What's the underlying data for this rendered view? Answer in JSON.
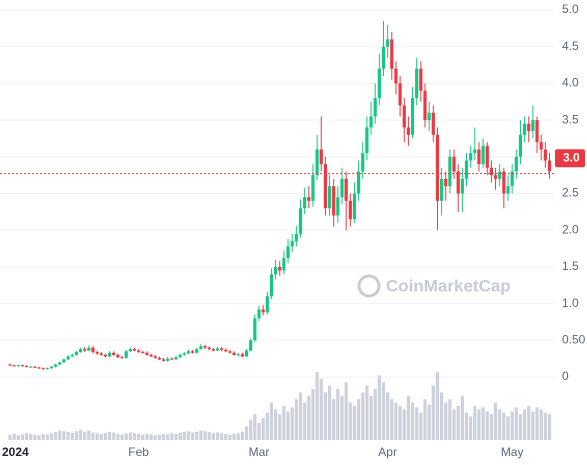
{
  "chart_data": {
    "type": "candlestick",
    "watermark": "CoinMarketCap",
    "up_color": "#16c784",
    "down_color": "#ea3943",
    "volume_color": "#cdd1dc",
    "grid": true,
    "ylim": [
      0,
      5
    ],
    "yticks": [
      0,
      {
        "value": 0.5,
        "label": "0.50"
      },
      {
        "value": 1,
        "label": "1.0"
      },
      1.5,
      {
        "value": 2,
        "label": "2.0"
      },
      2.5,
      {
        "value": 3,
        "label": "3.0"
      },
      3.5,
      {
        "value": 4,
        "label": "4.0"
      },
      4.5,
      {
        "value": 5,
        "label": "5.0"
      }
    ],
    "last_price": {
      "value": 2.98,
      "label": "3.0"
    },
    "price_line": 2.77,
    "categories": [
      "2024",
      null,
      null,
      null,
      null,
      null,
      null,
      null,
      null,
      null,
      null,
      null,
      null,
      null,
      null,
      null,
      null,
      null,
      null,
      null,
      null,
      null,
      null,
      null,
      null,
      null,
      null,
      null,
      null,
      null,
      null,
      "Feb",
      null,
      null,
      null,
      null,
      null,
      null,
      null,
      null,
      null,
      null,
      null,
      null,
      null,
      null,
      null,
      null,
      null,
      null,
      null,
      null,
      null,
      null,
      null,
      null,
      null,
      null,
      null,
      null,
      "Mar",
      null,
      null,
      null,
      null,
      null,
      null,
      null,
      null,
      null,
      null,
      null,
      null,
      null,
      null,
      null,
      null,
      null,
      null,
      null,
      null,
      null,
      null,
      null,
      null,
      null,
      null,
      null,
      null,
      null,
      null,
      "Apr",
      null,
      null,
      null,
      null,
      null,
      null,
      null,
      null,
      null,
      null,
      null,
      null,
      null,
      null,
      null,
      null,
      null,
      null,
      null,
      null,
      null,
      null,
      null,
      null,
      null,
      null,
      null,
      null,
      null,
      "May",
      null,
      null,
      null,
      null,
      null,
      null,
      null,
      null,
      null
    ],
    "open": [
      0.17,
      0.16,
      0.15,
      0.16,
      0.15,
      0.14,
      0.14,
      0.13,
      0.12,
      0.11,
      0.12,
      0.14,
      0.17,
      0.2,
      0.24,
      0.28,
      0.3,
      0.34,
      0.38,
      0.36,
      0.4,
      0.34,
      0.32,
      0.3,
      0.28,
      0.33,
      0.3,
      0.27,
      0.26,
      0.35,
      0.38,
      0.36,
      0.34,
      0.33,
      0.3,
      0.28,
      0.26,
      0.24,
      0.22,
      0.25,
      0.24,
      0.27,
      0.3,
      0.32,
      0.35,
      0.33,
      0.38,
      0.42,
      0.4,
      0.38,
      0.36,
      0.39,
      0.37,
      0.35,
      0.33,
      0.3,
      0.31,
      0.28,
      0.36,
      0.5,
      0.8,
      0.92,
      0.88,
      1.1,
      1.4,
      1.5,
      1.45,
      1.62,
      1.78,
      1.85,
      1.95,
      2.3,
      2.45,
      2.4,
      2.75,
      3.1,
      2.9,
      2.3,
      2.6,
      2.2,
      2.45,
      2.7,
      2.4,
      2.15,
      2.5,
      2.8,
      3.05,
      3.4,
      3.55,
      3.8,
      4.2,
      4.5,
      4.6,
      4.2,
      4.0,
      3.7,
      3.4,
      3.3,
      3.8,
      4.2,
      3.9,
      3.5,
      3.6,
      3.3,
      2.4,
      2.7,
      2.6,
      3.0,
      2.8,
      2.5,
      2.7,
      2.95,
      3.05,
      3.1,
      2.9,
      3.15,
      2.85,
      2.75,
      2.7,
      2.8,
      2.5,
      2.6,
      2.8,
      3.0,
      3.3,
      3.45,
      3.35,
      3.5,
      3.2,
      3.1,
      2.95
    ],
    "high": [
      0.18,
      0.17,
      0.17,
      0.17,
      0.16,
      0.15,
      0.15,
      0.14,
      0.13,
      0.13,
      0.15,
      0.18,
      0.21,
      0.25,
      0.3,
      0.32,
      0.36,
      0.4,
      0.41,
      0.43,
      0.42,
      0.36,
      0.34,
      0.32,
      0.35,
      0.35,
      0.32,
      0.29,
      0.37,
      0.4,
      0.4,
      0.38,
      0.36,
      0.35,
      0.32,
      0.3,
      0.28,
      0.26,
      0.27,
      0.27,
      0.29,
      0.32,
      0.34,
      0.37,
      0.37,
      0.4,
      0.45,
      0.44,
      0.42,
      0.4,
      0.41,
      0.41,
      0.39,
      0.37,
      0.35,
      0.33,
      0.33,
      0.38,
      0.53,
      0.85,
      0.97,
      0.98,
      1.16,
      1.48,
      1.6,
      1.58,
      1.72,
      1.88,
      1.95,
      2.06,
      2.42,
      2.58,
      2.6,
      2.9,
      3.3,
      3.55,
      3.0,
      2.75,
      2.7,
      2.6,
      2.85,
      2.8,
      2.5,
      2.65,
      2.95,
      3.2,
      3.55,
      3.75,
      4.0,
      4.4,
      4.85,
      4.8,
      4.7,
      4.3,
      4.1,
      3.8,
      3.55,
      3.95,
      4.35,
      4.3,
      4.0,
      3.75,
      3.7,
      3.4,
      2.85,
      2.8,
      3.1,
      3.1,
      2.9,
      2.85,
      3.05,
      3.15,
      3.4,
      3.2,
      3.25,
      3.2,
      2.95,
      2.85,
      2.9,
      2.85,
      2.75,
      2.9,
      3.1,
      3.5,
      3.55,
      3.55,
      3.7,
      3.55,
      3.3,
      3.2,
      3.05
    ],
    "low": [
      0.15,
      0.14,
      0.14,
      0.14,
      0.13,
      0.13,
      0.12,
      0.11,
      0.1,
      0.1,
      0.11,
      0.13,
      0.16,
      0.19,
      0.23,
      0.27,
      0.29,
      0.33,
      0.34,
      0.35,
      0.32,
      0.3,
      0.29,
      0.27,
      0.27,
      0.29,
      0.26,
      0.25,
      0.25,
      0.34,
      0.35,
      0.33,
      0.32,
      0.29,
      0.27,
      0.25,
      0.23,
      0.21,
      0.21,
      0.23,
      0.23,
      0.26,
      0.29,
      0.31,
      0.32,
      0.32,
      0.37,
      0.38,
      0.36,
      0.35,
      0.35,
      0.35,
      0.34,
      0.32,
      0.29,
      0.28,
      0.27,
      0.27,
      0.35,
      0.48,
      0.76,
      0.84,
      0.85,
      1.06,
      1.33,
      1.38,
      1.4,
      1.55,
      1.7,
      1.78,
      1.9,
      2.22,
      2.3,
      2.32,
      2.68,
      2.8,
      2.2,
      2.2,
      2.05,
      2.1,
      2.35,
      2.0,
      2.05,
      2.1,
      2.4,
      2.7,
      2.95,
      3.3,
      3.45,
      3.7,
      4.1,
      4.35,
      4.05,
      3.85,
      3.55,
      3.2,
      3.15,
      3.25,
      3.7,
      3.75,
      3.4,
      3.35,
      3.2,
      2.0,
      2.2,
      2.4,
      2.5,
      2.7,
      2.25,
      2.25,
      2.6,
      2.85,
      2.95,
      2.8,
      2.85,
      2.75,
      2.65,
      2.55,
      2.6,
      2.3,
      2.4,
      2.5,
      2.7,
      2.9,
      3.2,
      3.2,
      3.25,
      3.05,
      2.95,
      2.85,
      2.7
    ],
    "close": [
      0.16,
      0.15,
      0.16,
      0.15,
      0.14,
      0.14,
      0.13,
      0.12,
      0.11,
      0.12,
      0.14,
      0.17,
      0.2,
      0.24,
      0.28,
      0.3,
      0.34,
      0.38,
      0.36,
      0.4,
      0.34,
      0.32,
      0.3,
      0.28,
      0.33,
      0.3,
      0.27,
      0.26,
      0.35,
      0.38,
      0.36,
      0.34,
      0.33,
      0.3,
      0.28,
      0.26,
      0.24,
      0.22,
      0.25,
      0.24,
      0.27,
      0.3,
      0.32,
      0.35,
      0.33,
      0.38,
      0.42,
      0.4,
      0.38,
      0.36,
      0.39,
      0.37,
      0.35,
      0.33,
      0.3,
      0.31,
      0.28,
      0.36,
      0.5,
      0.8,
      0.92,
      0.88,
      1.1,
      1.4,
      1.5,
      1.45,
      1.62,
      1.78,
      1.85,
      1.95,
      2.3,
      2.45,
      2.4,
      2.75,
      3.1,
      2.9,
      2.3,
      2.6,
      2.2,
      2.45,
      2.7,
      2.4,
      2.15,
      2.5,
      2.8,
      3.05,
      3.4,
      3.55,
      3.8,
      4.2,
      4.5,
      4.6,
      4.2,
      4.0,
      3.7,
      3.4,
      3.3,
      3.8,
      4.2,
      3.9,
      3.5,
      3.6,
      3.3,
      2.4,
      2.7,
      2.6,
      3.0,
      2.8,
      2.5,
      2.7,
      2.95,
      3.05,
      3.1,
      2.9,
      3.15,
      2.85,
      2.75,
      2.7,
      2.8,
      2.5,
      2.6,
      2.8,
      3.0,
      3.3,
      3.45,
      3.35,
      3.5,
      3.2,
      3.1,
      2.95,
      2.8
    ],
    "volume": [
      8,
      9,
      7,
      8,
      10,
      9,
      8,
      7,
      9,
      8,
      10,
      12,
      14,
      13,
      12,
      11,
      13,
      15,
      12,
      14,
      11,
      10,
      9,
      10,
      12,
      11,
      9,
      8,
      10,
      11,
      10,
      9,
      8,
      9,
      8,
      7,
      8,
      9,
      8,
      10,
      9,
      11,
      12,
      13,
      11,
      12,
      14,
      13,
      12,
      10,
      11,
      10,
      9,
      8,
      9,
      10,
      12,
      20,
      30,
      38,
      25,
      32,
      40,
      55,
      45,
      38,
      50,
      42,
      48,
      60,
      70,
      55,
      65,
      75,
      100,
      90,
      70,
      80,
      60,
      75,
      65,
      85,
      55,
      50,
      60,
      70,
      80,
      65,
      75,
      95,
      85,
      70,
      60,
      55,
      50,
      45,
      65,
      55,
      48,
      40,
      60,
      52,
      80,
      100,
      70,
      55,
      60,
      45,
      50,
      65,
      40,
      35,
      50,
      45,
      48,
      42,
      38,
      55,
      45,
      40,
      35,
      42,
      48,
      38,
      45,
      50,
      42,
      48,
      45,
      40,
      38
    ]
  }
}
